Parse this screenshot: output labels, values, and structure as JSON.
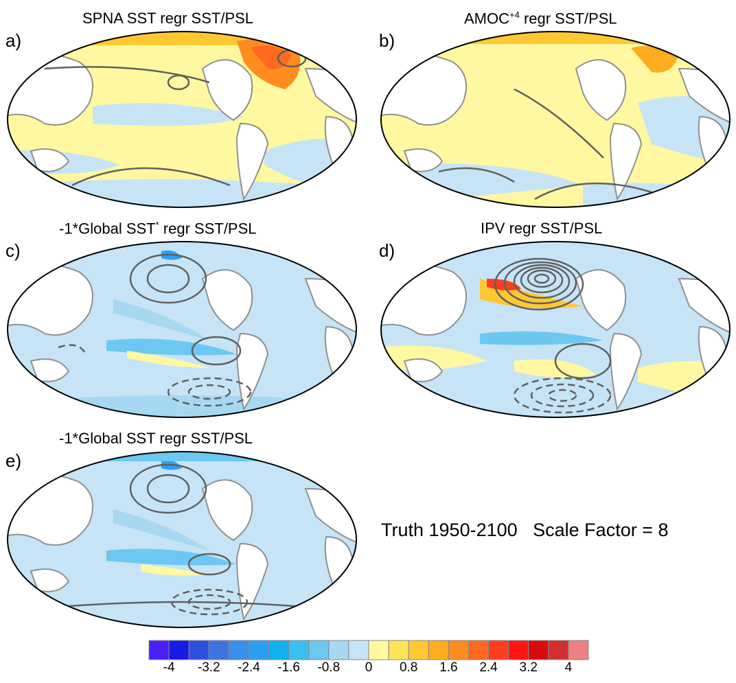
{
  "panels": [
    {
      "label": "a)",
      "title_pre": "SPNA SST regr SST/PSL",
      "title_sup": "",
      "title_post": ""
    },
    {
      "label": "b)",
      "title_pre": "AMOC",
      "title_sup": "+4",
      "title_post": " regr SST/PSL"
    },
    {
      "label": "c)",
      "title_pre": "-1*Global SST",
      "title_sup": "*",
      "title_post": " regr SST/PSL"
    },
    {
      "label": "d)",
      "title_pre": "IPV regr SST/PSL",
      "title_sup": "",
      "title_post": ""
    },
    {
      "label": "e)",
      "title_pre": "-1*Global SST regr SST/PSL",
      "title_sup": "",
      "title_post": ""
    }
  ],
  "caption": "Truth 1950-2100   Scale Factor = 8",
  "colorbar": {
    "colors": [
      "#4a1ff5",
      "#1a1ae6",
      "#2f4fe0",
      "#3f73e0",
      "#3a8ef0",
      "#2aa0f5",
      "#12b0f0",
      "#3cc0f0",
      "#6cc8f0",
      "#a6d8f2",
      "#c6e4f6",
      "#fff8a0",
      "#ffe45a",
      "#ffc832",
      "#ffac1e",
      "#ff8c1e",
      "#ff6a1e",
      "#ff3c1e",
      "#ff1414",
      "#d80c0c",
      "#d23030",
      "#f08080"
    ],
    "tick_labels": [
      "-4",
      "-3.2",
      "-2.4",
      "-1.6",
      "-0.8",
      "0",
      "0.8",
      "1.6",
      "2.4",
      "3.2",
      "4"
    ]
  },
  "colors": {
    "land": "#ffffff",
    "coast": "#909090",
    "contour": "#606060",
    "ocean_light_blue": "#c6e4f6",
    "ocean_yellow": "#fff8a0"
  }
}
